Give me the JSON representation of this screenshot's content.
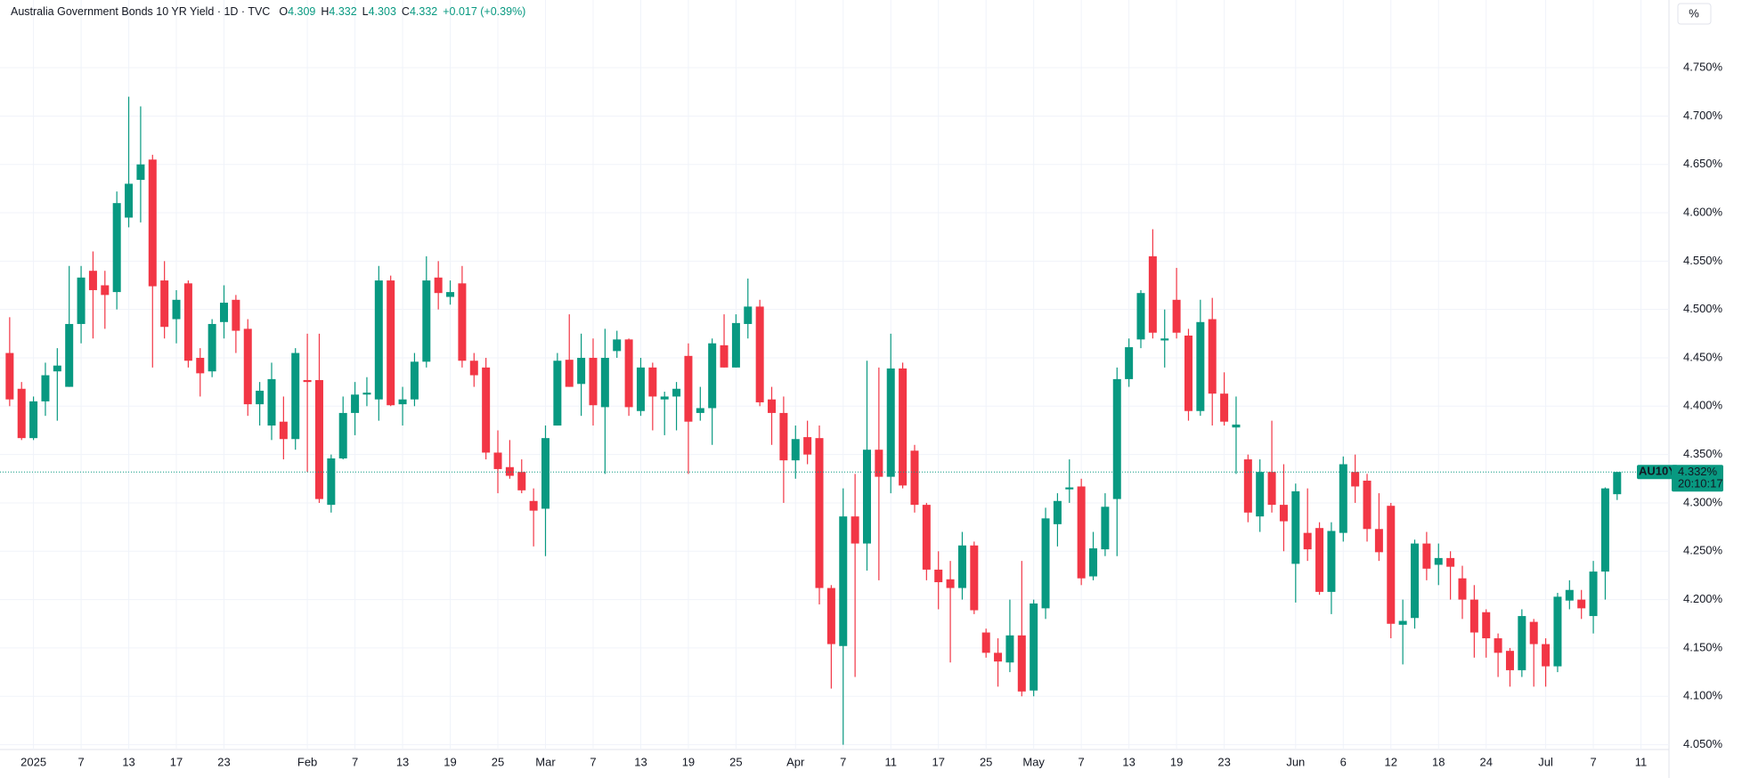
{
  "chart_data": {
    "type": "candlestick",
    "title": "Australia Government Bonds 10 YR Yield · 1D · TVC",
    "ohlc_labels": [
      "O",
      "H",
      "L",
      "C"
    ],
    "ohlc_values": [
      4.309,
      4.332,
      4.303,
      4.332
    ],
    "change_label": "+0.017 (+0.39%)",
    "scale_button": "%",
    "up_color": "#089981",
    "down_color": "#f23645",
    "grid": true,
    "categories": [
      null,
      null,
      "2025",
      null,
      null,
      null,
      "7",
      null,
      null,
      null,
      "13",
      null,
      null,
      null,
      "17",
      null,
      null,
      null,
      "23",
      null,
      null,
      null,
      null,
      null,
      null,
      "Feb",
      null,
      null,
      null,
      "7",
      null,
      null,
      null,
      "13",
      null,
      null,
      null,
      "19",
      null,
      null,
      null,
      "25",
      null,
      null,
      null,
      "Mar",
      null,
      null,
      null,
      "7",
      null,
      null,
      null,
      "13",
      null,
      null,
      null,
      "19",
      null,
      null,
      null,
      "25",
      null,
      null,
      null,
      null,
      "Apr",
      null,
      null,
      null,
      "7",
      null,
      null,
      null,
      "11",
      null,
      null,
      null,
      "17",
      null,
      null,
      null,
      "25",
      null,
      null,
      null,
      "May",
      null,
      null,
      null,
      "7",
      null,
      null,
      null,
      "13",
      null,
      null,
      null,
      "19",
      null,
      null,
      null,
      "23",
      null,
      null,
      null,
      null,
      null,
      "Jun",
      null,
      null,
      null,
      "6",
      null,
      null,
      null,
      "12",
      null,
      null,
      null,
      "18",
      null,
      null,
      null,
      "24",
      null,
      null,
      null,
      null,
      "Jul",
      null,
      null,
      null,
      "7",
      null,
      null,
      null,
      "11"
    ],
    "open": [
      4.455,
      4.418,
      4.367,
      4.405,
      4.436,
      4.42,
      4.485,
      4.54,
      4.525,
      4.518,
      4.595,
      4.634,
      4.655,
      4.53,
      4.49,
      4.527,
      4.45,
      4.436,
      4.487,
      4.51,
      4.48,
      4.402,
      4.38,
      4.384,
      4.366,
      4.427,
      4.427,
      4.298,
      4.346,
      4.393,
      4.412,
      4.407,
      4.53,
      4.402,
      4.407,
      4.446,
      4.533,
      4.513,
      4.527,
      4.447,
      4.44,
      4.352,
      4.337,
      4.332,
      4.302,
      4.294,
      4.38,
      4.448,
      4.423,
      4.45,
      4.399,
      4.457,
      4.469,
      4.395,
      4.44,
      4.407,
      4.41,
      4.452,
      4.393,
      4.398,
      4.463,
      4.44,
      4.485,
      4.503,
      4.407,
      4.393,
      4.344,
      4.368,
      4.367,
      4.212,
      4.152,
      4.286,
      4.258,
      4.355,
      4.327,
      4.439,
      4.354,
      4.298,
      4.231,
      4.221,
      4.212,
      4.256,
      4.166,
      4.145,
      4.135,
      4.163,
      4.106,
      4.191,
      4.278,
      4.314,
      4.317,
      4.224,
      4.252,
      4.304,
      4.428,
      4.469,
      4.555,
      4.468,
      4.51,
      4.473,
      4.395,
      4.49,
      4.413,
      4.378,
      4.345,
      4.286,
      4.332,
      4.298,
      4.237,
      4.269,
      4.274,
      4.208,
      4.269,
      4.332,
      4.323,
      4.273,
      4.297,
      4.174,
      4.181,
      4.258,
      4.236,
      4.243,
      4.222,
      4.2,
      4.187,
      4.16,
      4.147,
      4.127,
      4.177,
      4.154,
      4.131,
      4.199,
      4.2,
      4.183,
      4.229,
      4.309,
      null,
      null
    ],
    "high": [
      4.492,
      4.425,
      4.41,
      4.445,
      4.46,
      4.545,
      4.545,
      4.56,
      4.54,
      4.622,
      4.72,
      4.71,
      4.66,
      4.55,
      4.52,
      4.53,
      4.46,
      4.49,
      4.525,
      4.515,
      4.49,
      4.425,
      4.445,
      4.41,
      4.46,
      4.475,
      4.475,
      4.35,
      4.41,
      4.425,
      4.43,
      4.545,
      4.535,
      4.42,
      4.455,
      4.555,
      4.55,
      4.53,
      4.545,
      4.455,
      4.45,
      4.375,
      4.365,
      4.345,
      4.315,
      4.38,
      4.455,
      4.495,
      4.475,
      4.47,
      4.48,
      4.478,
      4.47,
      4.45,
      4.445,
      4.415,
      4.425,
      4.465,
      4.42,
      4.47,
      4.495,
      4.495,
      4.532,
      4.51,
      4.42,
      4.41,
      4.38,
      4.385,
      4.38,
      4.215,
      4.315,
      4.33,
      4.447,
      4.44,
      4.475,
      4.445,
      4.36,
      4.3,
      4.25,
      4.24,
      4.27,
      4.26,
      4.17,
      4.16,
      4.2,
      4.24,
      4.2,
      4.295,
      4.31,
      4.345,
      4.325,
      4.27,
      4.31,
      4.44,
      4.47,
      4.52,
      4.583,
      4.5,
      4.543,
      4.48,
      4.51,
      4.512,
      4.435,
      4.41,
      4.35,
      4.345,
      4.385,
      4.34,
      4.32,
      4.315,
      4.28,
      4.28,
      4.348,
      4.35,
      4.33,
      4.31,
      4.3,
      4.2,
      4.262,
      4.27,
      4.258,
      4.25,
      4.235,
      4.215,
      4.19,
      4.165,
      4.15,
      4.19,
      4.18,
      4.16,
      4.207,
      4.22,
      4.21,
      4.24,
      4.316,
      4.332,
      null,
      null
    ],
    "low": [
      4.4,
      4.365,
      4.365,
      4.39,
      4.385,
      4.42,
      4.465,
      4.47,
      4.48,
      4.5,
      4.585,
      4.59,
      4.44,
      4.47,
      4.465,
      4.44,
      4.41,
      4.43,
      4.47,
      4.455,
      4.39,
      4.38,
      4.365,
      4.345,
      4.355,
      4.332,
      4.3,
      4.29,
      4.345,
      4.37,
      4.4,
      4.385,
      4.4,
      4.38,
      4.4,
      4.44,
      4.5,
      4.505,
      4.44,
      4.42,
      4.345,
      4.31,
      4.325,
      4.31,
      4.255,
      4.245,
      4.38,
      4.42,
      4.39,
      4.38,
      4.33,
      4.45,
      4.39,
      4.39,
      4.375,
      4.37,
      4.375,
      4.33,
      4.385,
      4.36,
      4.44,
      4.44,
      4.47,
      4.4,
      4.36,
      4.3,
      4.325,
      4.34,
      4.195,
      4.108,
      4.05,
      4.12,
      4.23,
      4.22,
      4.31,
      4.315,
      4.29,
      4.22,
      4.19,
      4.135,
      4.2,
      4.185,
      4.14,
      4.11,
      4.125,
      4.1,
      4.1,
      4.18,
      4.255,
      4.3,
      4.215,
      4.22,
      4.245,
      4.245,
      4.42,
      4.46,
      4.47,
      4.44,
      4.47,
      4.385,
      4.39,
      4.38,
      4.38,
      4.33,
      4.28,
      4.27,
      4.29,
      4.25,
      4.197,
      4.24,
      4.205,
      4.185,
      4.26,
      4.3,
      4.26,
      4.24,
      4.16,
      4.133,
      4.17,
      4.22,
      4.215,
      4.2,
      4.18,
      4.14,
      4.14,
      4.12,
      4.11,
      4.12,
      4.11,
      4.11,
      4.125,
      4.19,
      4.18,
      4.165,
      4.2,
      4.303,
      null,
      null
    ],
    "close": [
      4.407,
      4.367,
      4.405,
      4.432,
      4.442,
      4.485,
      4.533,
      4.52,
      4.515,
      4.61,
      4.63,
      4.65,
      4.524,
      4.482,
      4.51,
      4.447,
      4.434,
      4.485,
      4.507,
      4.478,
      4.402,
      4.416,
      4.428,
      4.366,
      4.455,
      4.425,
      4.304,
      4.346,
      4.393,
      4.412,
      4.414,
      4.53,
      4.401,
      4.407,
      4.446,
      4.53,
      4.517,
      4.518,
      4.447,
      4.432,
      4.352,
      4.335,
      4.328,
      4.313,
      4.292,
      4.367,
      4.447,
      4.42,
      4.45,
      4.401,
      4.45,
      4.469,
      4.399,
      4.44,
      4.41,
      4.41,
      4.418,
      4.384,
      4.398,
      4.465,
      4.44,
      4.486,
      4.503,
      4.404,
      4.393,
      4.344,
      4.366,
      4.35,
      4.212,
      4.154,
      4.286,
      4.258,
      4.355,
      4.327,
      4.439,
      4.318,
      4.298,
      4.231,
      4.218,
      4.212,
      4.256,
      4.189,
      4.145,
      4.136,
      4.163,
      4.105,
      4.196,
      4.284,
      4.302,
      4.316,
      4.222,
      4.253,
      4.296,
      4.428,
      4.461,
      4.517,
      4.476,
      4.47,
      4.476,
      4.395,
      4.487,
      4.413,
      4.384,
      4.381,
      4.29,
      4.332,
      4.298,
      4.281,
      4.312,
      4.252,
      4.208,
      4.271,
      4.34,
      4.317,
      4.273,
      4.249,
      4.175,
      4.178,
      4.258,
      4.232,
      4.243,
      4.234,
      4.2,
      4.166,
      4.16,
      4.145,
      4.127,
      4.183,
      4.154,
      4.131,
      4.203,
      4.21,
      4.191,
      4.229,
      4.315,
      4.332,
      null,
      null
    ],
    "ylim": [
      4.045,
      4.82
    ],
    "yticks": [
      {
        "value": 4.05,
        "label": "4.050%"
      },
      {
        "value": 4.1,
        "label": "4.100%"
      },
      {
        "value": 4.15,
        "label": "4.150%"
      },
      {
        "value": 4.2,
        "label": "4.200%"
      },
      {
        "value": 4.25,
        "label": "4.250%"
      },
      {
        "value": 4.3,
        "label": "4.300%"
      },
      {
        "value": 4.35,
        "label": "4.350%"
      },
      {
        "value": 4.4,
        "label": "4.400%"
      },
      {
        "value": 4.45,
        "label": "4.450%"
      },
      {
        "value": 4.5,
        "label": "4.500%"
      },
      {
        "value": 4.55,
        "label": "4.550%"
      },
      {
        "value": 4.6,
        "label": "4.600%"
      },
      {
        "value": 4.65,
        "label": "4.650%"
      },
      {
        "value": 4.7,
        "label": "4.700%"
      },
      {
        "value": 4.75,
        "label": "4.750%"
      }
    ],
    "last_price": {
      "symbol": "AU10Y",
      "value": 4.332,
      "label": "4.332%",
      "countdown": "20:10:17"
    }
  }
}
